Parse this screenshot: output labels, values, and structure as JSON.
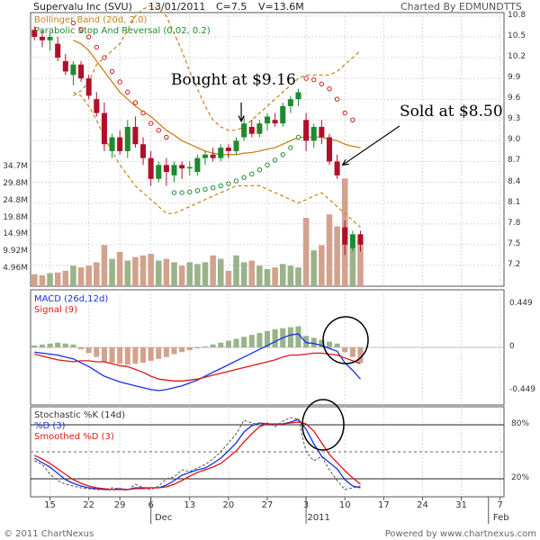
{
  "header": {
    "title": "Supervalu Inc (SVU)",
    "date": "13/01/2011",
    "close": "C=7.5",
    "volume": "V=13.6M",
    "charted_by": "Charted By EDMUNDTTS"
  },
  "footer": {
    "copyright": "© 2011 ChartNexus",
    "powered": "Powered by www.chartnexus.com"
  },
  "colors": {
    "up": "#1f8a2e",
    "down": "#b0102a",
    "bollinger": "#c8821e",
    "sar": "#d11a1a",
    "sar_below": "#1f8a2e",
    "vol_up": "#9ab38a",
    "vol_down": "#d2a28e",
    "macd": "#1530e0",
    "signal": "#e01515",
    "k": "#555555",
    "d": "#1530e0",
    "sd": "#e01515"
  },
  "annotations": {
    "bought": "Bought at $9.16",
    "sold": "Sold at $8.50"
  },
  "chart_data": [
    {
      "type": "candlestick",
      "panel": "price",
      "legend": [
        "Bollinger Band (20d, 2.0)",
        "Parabolic Stop And Reversal (0.02, 0.2)"
      ],
      "yticks": [
        7.2,
        7.5,
        7.8,
        8.1,
        8.4,
        8.7,
        9.0,
        9.3,
        9.6,
        9.9,
        10.2,
        10.5,
        10.8
      ],
      "ylim": [
        6.9,
        10.85
      ],
      "xticks": [
        {
          "label": "15",
          "i": 2
        },
        {
          "label": "22",
          "i": 7
        },
        {
          "label": "29",
          "i": 11
        },
        {
          "label": "6",
          "i": 15
        },
        {
          "label": "13",
          "i": 20
        },
        {
          "label": "20",
          "i": 25
        },
        {
          "label": "27",
          "i": 30
        },
        {
          "label": "3",
          "i": 35
        },
        {
          "label": "10",
          "i": 40
        },
        {
          "label": "17",
          "i": 45
        },
        {
          "label": "24",
          "i": 50
        },
        {
          "label": "31",
          "i": 55
        },
        {
          "label": "7",
          "i": 60
        }
      ],
      "month_labels": [
        {
          "label": "Dec",
          "i": 15
        },
        {
          "label": "2011",
          "i": 35
        },
        {
          "label": "Feb",
          "i": 58.5
        }
      ],
      "n_slots": 61,
      "ohlc": [
        [
          10.6,
          10.65,
          10.45,
          10.5
        ],
        [
          10.5,
          10.6,
          10.35,
          10.45
        ],
        [
          10.45,
          10.55,
          10.3,
          10.5
        ],
        [
          10.4,
          10.5,
          10.15,
          10.2
        ],
        [
          10.15,
          10.25,
          9.95,
          10.0
        ],
        [
          9.95,
          10.15,
          9.8,
          10.1
        ],
        [
          10.1,
          10.15,
          9.85,
          9.9
        ],
        [
          9.9,
          9.95,
          9.6,
          9.65
        ],
        [
          9.6,
          9.7,
          9.35,
          9.4
        ],
        [
          9.4,
          9.55,
          8.85,
          8.95
        ],
        [
          8.85,
          9.1,
          8.75,
          9.05
        ],
        [
          9.05,
          9.15,
          8.8,
          8.85
        ],
        [
          8.85,
          9.3,
          8.75,
          9.2
        ],
        [
          9.2,
          9.35,
          8.9,
          8.95
        ],
        [
          8.95,
          9.05,
          8.65,
          8.75
        ],
        [
          8.75,
          8.85,
          8.35,
          8.45
        ],
        [
          8.45,
          8.7,
          8.4,
          8.65
        ],
        [
          8.65,
          8.75,
          8.35,
          8.55
        ],
        [
          8.5,
          8.7,
          8.4,
          8.65
        ],
        [
          8.65,
          8.7,
          8.45,
          8.6
        ],
        [
          8.6,
          8.7,
          8.5,
          8.62
        ],
        [
          8.55,
          8.8,
          8.5,
          8.75
        ],
        [
          8.75,
          8.85,
          8.65,
          8.8
        ],
        [
          8.8,
          8.9,
          8.7,
          8.75
        ],
        [
          8.75,
          8.95,
          8.7,
          8.9
        ],
        [
          8.9,
          8.95,
          8.75,
          8.85
        ],
        [
          8.85,
          9.05,
          8.8,
          9.0
        ],
        [
          9.05,
          9.35,
          9.0,
          9.25
        ],
        [
          9.2,
          9.3,
          9.05,
          9.1
        ],
        [
          9.1,
          9.3,
          9.05,
          9.25
        ],
        [
          9.25,
          9.4,
          9.15,
          9.35
        ],
        [
          9.3,
          9.4,
          9.2,
          9.25
        ],
        [
          9.25,
          9.55,
          9.2,
          9.5
        ],
        [
          9.5,
          9.65,
          9.4,
          9.6
        ],
        [
          9.6,
          9.75,
          9.5,
          9.7
        ],
        [
          9.3,
          9.4,
          8.85,
          9.0
        ],
        [
          9.0,
          9.25,
          8.9,
          9.2
        ],
        [
          9.2,
          9.3,
          8.95,
          9.05
        ],
        [
          9.05,
          9.1,
          8.65,
          8.7
        ],
        [
          8.7,
          8.8,
          8.45,
          8.5
        ],
        [
          7.75,
          7.85,
          7.35,
          7.5
        ],
        [
          7.45,
          7.7,
          7.4,
          7.65
        ],
        [
          7.65,
          7.7,
          7.4,
          7.5
        ]
      ],
      "sar": [
        null,
        null,
        null,
        null,
        null,
        10.7,
        10.6,
        10.5,
        10.35,
        10.2,
        10.0,
        9.85,
        9.7,
        9.55,
        9.4,
        9.25,
        9.15,
        9.05,
        8.25,
        8.25,
        8.26,
        8.28,
        8.3,
        8.32,
        8.35,
        8.38,
        8.42,
        8.47,
        8.52,
        8.58,
        8.65,
        8.72,
        8.8,
        8.9,
        9.05,
        9.9,
        9.88,
        9.82,
        9.75,
        9.6,
        9.4,
        9.3,
        null
      ],
      "bb_upper": [
        null,
        null,
        null,
        null,
        null,
        9.65,
        9.72,
        9.85,
        10.1,
        10.2,
        10.3,
        10.4,
        10.6,
        10.8,
        10.9,
        10.95,
        10.9,
        10.8,
        10.55,
        10.3,
        10.0,
        9.75,
        9.5,
        9.3,
        9.2,
        9.15,
        9.15,
        9.2,
        9.3,
        9.4,
        9.5,
        9.6,
        9.7,
        9.8,
        9.9,
        9.95,
        9.95,
        9.95,
        9.95,
        10.0,
        10.1,
        10.2,
        10.3
      ],
      "bb_middle": [
        null,
        null,
        null,
        null,
        null,
        10.45,
        10.4,
        10.3,
        10.15,
        10.0,
        9.85,
        9.7,
        9.6,
        9.5,
        9.42,
        9.35,
        9.25,
        9.15,
        9.08,
        9.0,
        8.95,
        8.9,
        8.85,
        8.82,
        8.8,
        8.8,
        8.8,
        8.82,
        8.83,
        8.85,
        8.88,
        8.9,
        8.95,
        9.0,
        9.05,
        9.05,
        9.05,
        9.05,
        9.02,
        9.0,
        8.95,
        8.92,
        8.9
      ],
      "bb_lower": [
        null,
        null,
        null,
        null,
        null,
        9.7,
        9.65,
        9.5,
        9.3,
        9.05,
        8.85,
        8.65,
        8.5,
        8.35,
        8.25,
        8.15,
        8.05,
        7.95,
        7.95,
        8.0,
        8.05,
        8.1,
        8.15,
        8.2,
        8.25,
        8.3,
        8.35,
        8.35,
        8.35,
        8.35,
        8.3,
        8.25,
        8.2,
        8.15,
        8.1,
        8.15,
        8.2,
        8.25,
        8.15,
        8.05,
        7.95,
        7.85,
        7.75
      ]
    },
    {
      "type": "bar",
      "panel": "volume",
      "yticks": [
        {
          "label": "4.96M",
          "v": 4.96
        },
        {
          "label": "9.92M",
          "v": 9.92
        },
        {
          "label": "14.9M",
          "v": 14.9
        },
        {
          "label": "19.8M",
          "v": 19.8
        },
        {
          "label": "24.8M",
          "v": 24.8
        },
        {
          "label": "29.8M",
          "v": 29.8
        },
        {
          "label": "34.7M",
          "v": 34.7
        }
      ],
      "ylim": [
        0,
        35
      ],
      "values": [
        3.5,
        3.2,
        3.8,
        4.0,
        4.5,
        6.0,
        5.5,
        6.0,
        7.0,
        12.0,
        8.0,
        10.0,
        7.5,
        8.5,
        9.0,
        9.5,
        7.5,
        8.0,
        7.0,
        6.0,
        7.0,
        6.5,
        7.0,
        9.0,
        8.0,
        4.5,
        9.0,
        7.0,
        7.5,
        6.0,
        5.0,
        5.5,
        6.5,
        6.0,
        5.5,
        20.0,
        10.5,
        12.0,
        21.0,
        17.5,
        31.5,
        11.5,
        13.5
      ]
    },
    {
      "type": "bar",
      "panel": "macd",
      "legend": [
        "MACD (26d,12d)",
        "Signal (9)"
      ],
      "yticks": [
        {
          "label": "0.449",
          "v": 0.449
        },
        {
          "label": "0",
          "v": 0
        },
        {
          "label": "-0.449",
          "v": -0.449
        }
      ],
      "ylim": [
        -0.6,
        0.6
      ],
      "hist": [
        0.02,
        0.03,
        0.04,
        0.05,
        0.04,
        0.03,
        -0.02,
        -0.06,
        -0.1,
        -0.15,
        -0.16,
        -0.17,
        -0.18,
        -0.17,
        -0.16,
        -0.14,
        -0.12,
        -0.1,
        -0.07,
        -0.05,
        -0.03,
        -0.01,
        0.01,
        0.03,
        0.05,
        0.07,
        0.09,
        0.11,
        0.13,
        0.15,
        0.17,
        0.19,
        0.2,
        0.21,
        0.22,
        0.12,
        0.1,
        0.08,
        0.06,
        0.04,
        -0.05,
        -0.1,
        -0.16
      ],
      "macd": [
        -0.05,
        -0.06,
        -0.07,
        -0.08,
        -0.1,
        -0.12,
        -0.16,
        -0.2,
        -0.25,
        -0.3,
        -0.33,
        -0.36,
        -0.38,
        -0.4,
        -0.42,
        -0.44,
        -0.45,
        -0.44,
        -0.42,
        -0.4,
        -0.37,
        -0.34,
        -0.3,
        -0.26,
        -0.22,
        -0.18,
        -0.14,
        -0.1,
        -0.06,
        -0.02,
        0.02,
        0.06,
        0.1,
        0.13,
        0.14,
        0.05,
        0.04,
        0.02,
        -0.01,
        -0.04,
        -0.16,
        -0.24,
        -0.33
      ],
      "signal": [
        -0.07,
        -0.09,
        -0.11,
        -0.13,
        -0.14,
        -0.15,
        -0.14,
        -0.14,
        -0.15,
        -0.15,
        -0.17,
        -0.19,
        -0.2,
        -0.23,
        -0.26,
        -0.3,
        -0.33,
        -0.34,
        -0.35,
        -0.35,
        -0.34,
        -0.33,
        -0.31,
        -0.29,
        -0.27,
        -0.25,
        -0.23,
        -0.21,
        -0.19,
        -0.17,
        -0.15,
        -0.13,
        -0.1,
        -0.08,
        -0.08,
        -0.07,
        -0.06,
        -0.06,
        -0.07,
        -0.08,
        -0.11,
        -0.14,
        -0.17
      ]
    },
    {
      "type": "line",
      "panel": "stochastic",
      "legend": [
        "Stochastic %K (14d)",
        "%D (3)",
        "Smoothed %D (3)"
      ],
      "yticks": [
        {
          "label": "80%",
          "v": 80
        },
        {
          "label": "20%",
          "v": 20
        }
      ],
      "ylim": [
        0,
        100
      ],
      "k": [
        40,
        36,
        25,
        18,
        14,
        12,
        10,
        9,
        8,
        8,
        10,
        9,
        7,
        14,
        10,
        8,
        12,
        20,
        22,
        30,
        28,
        32,
        36,
        42,
        50,
        60,
        70,
        85,
        82,
        80,
        82,
        78,
        84,
        88,
        86,
        50,
        40,
        45,
        30,
        18,
        8,
        10,
        12
      ],
      "d": [
        43,
        38,
        33,
        26,
        19,
        15,
        12,
        10,
        9,
        8,
        8,
        9,
        8,
        10,
        10,
        10,
        10,
        13,
        18,
        24,
        27,
        30,
        32,
        37,
        43,
        51,
        60,
        72,
        79,
        82,
        81,
        80,
        81,
        83,
        86,
        75,
        59,
        45,
        38,
        31,
        19,
        12,
        10
      ],
      "sd": [
        46,
        42,
        37,
        31,
        25,
        19,
        15,
        12,
        10,
        9,
        8,
        8,
        8,
        9,
        9,
        10,
        10,
        11,
        14,
        18,
        23,
        27,
        30,
        33,
        37,
        44,
        51,
        61,
        70,
        78,
        81,
        81,
        81,
        82,
        83,
        81,
        73,
        60,
        47,
        38,
        29,
        21,
        14
      ]
    }
  ]
}
